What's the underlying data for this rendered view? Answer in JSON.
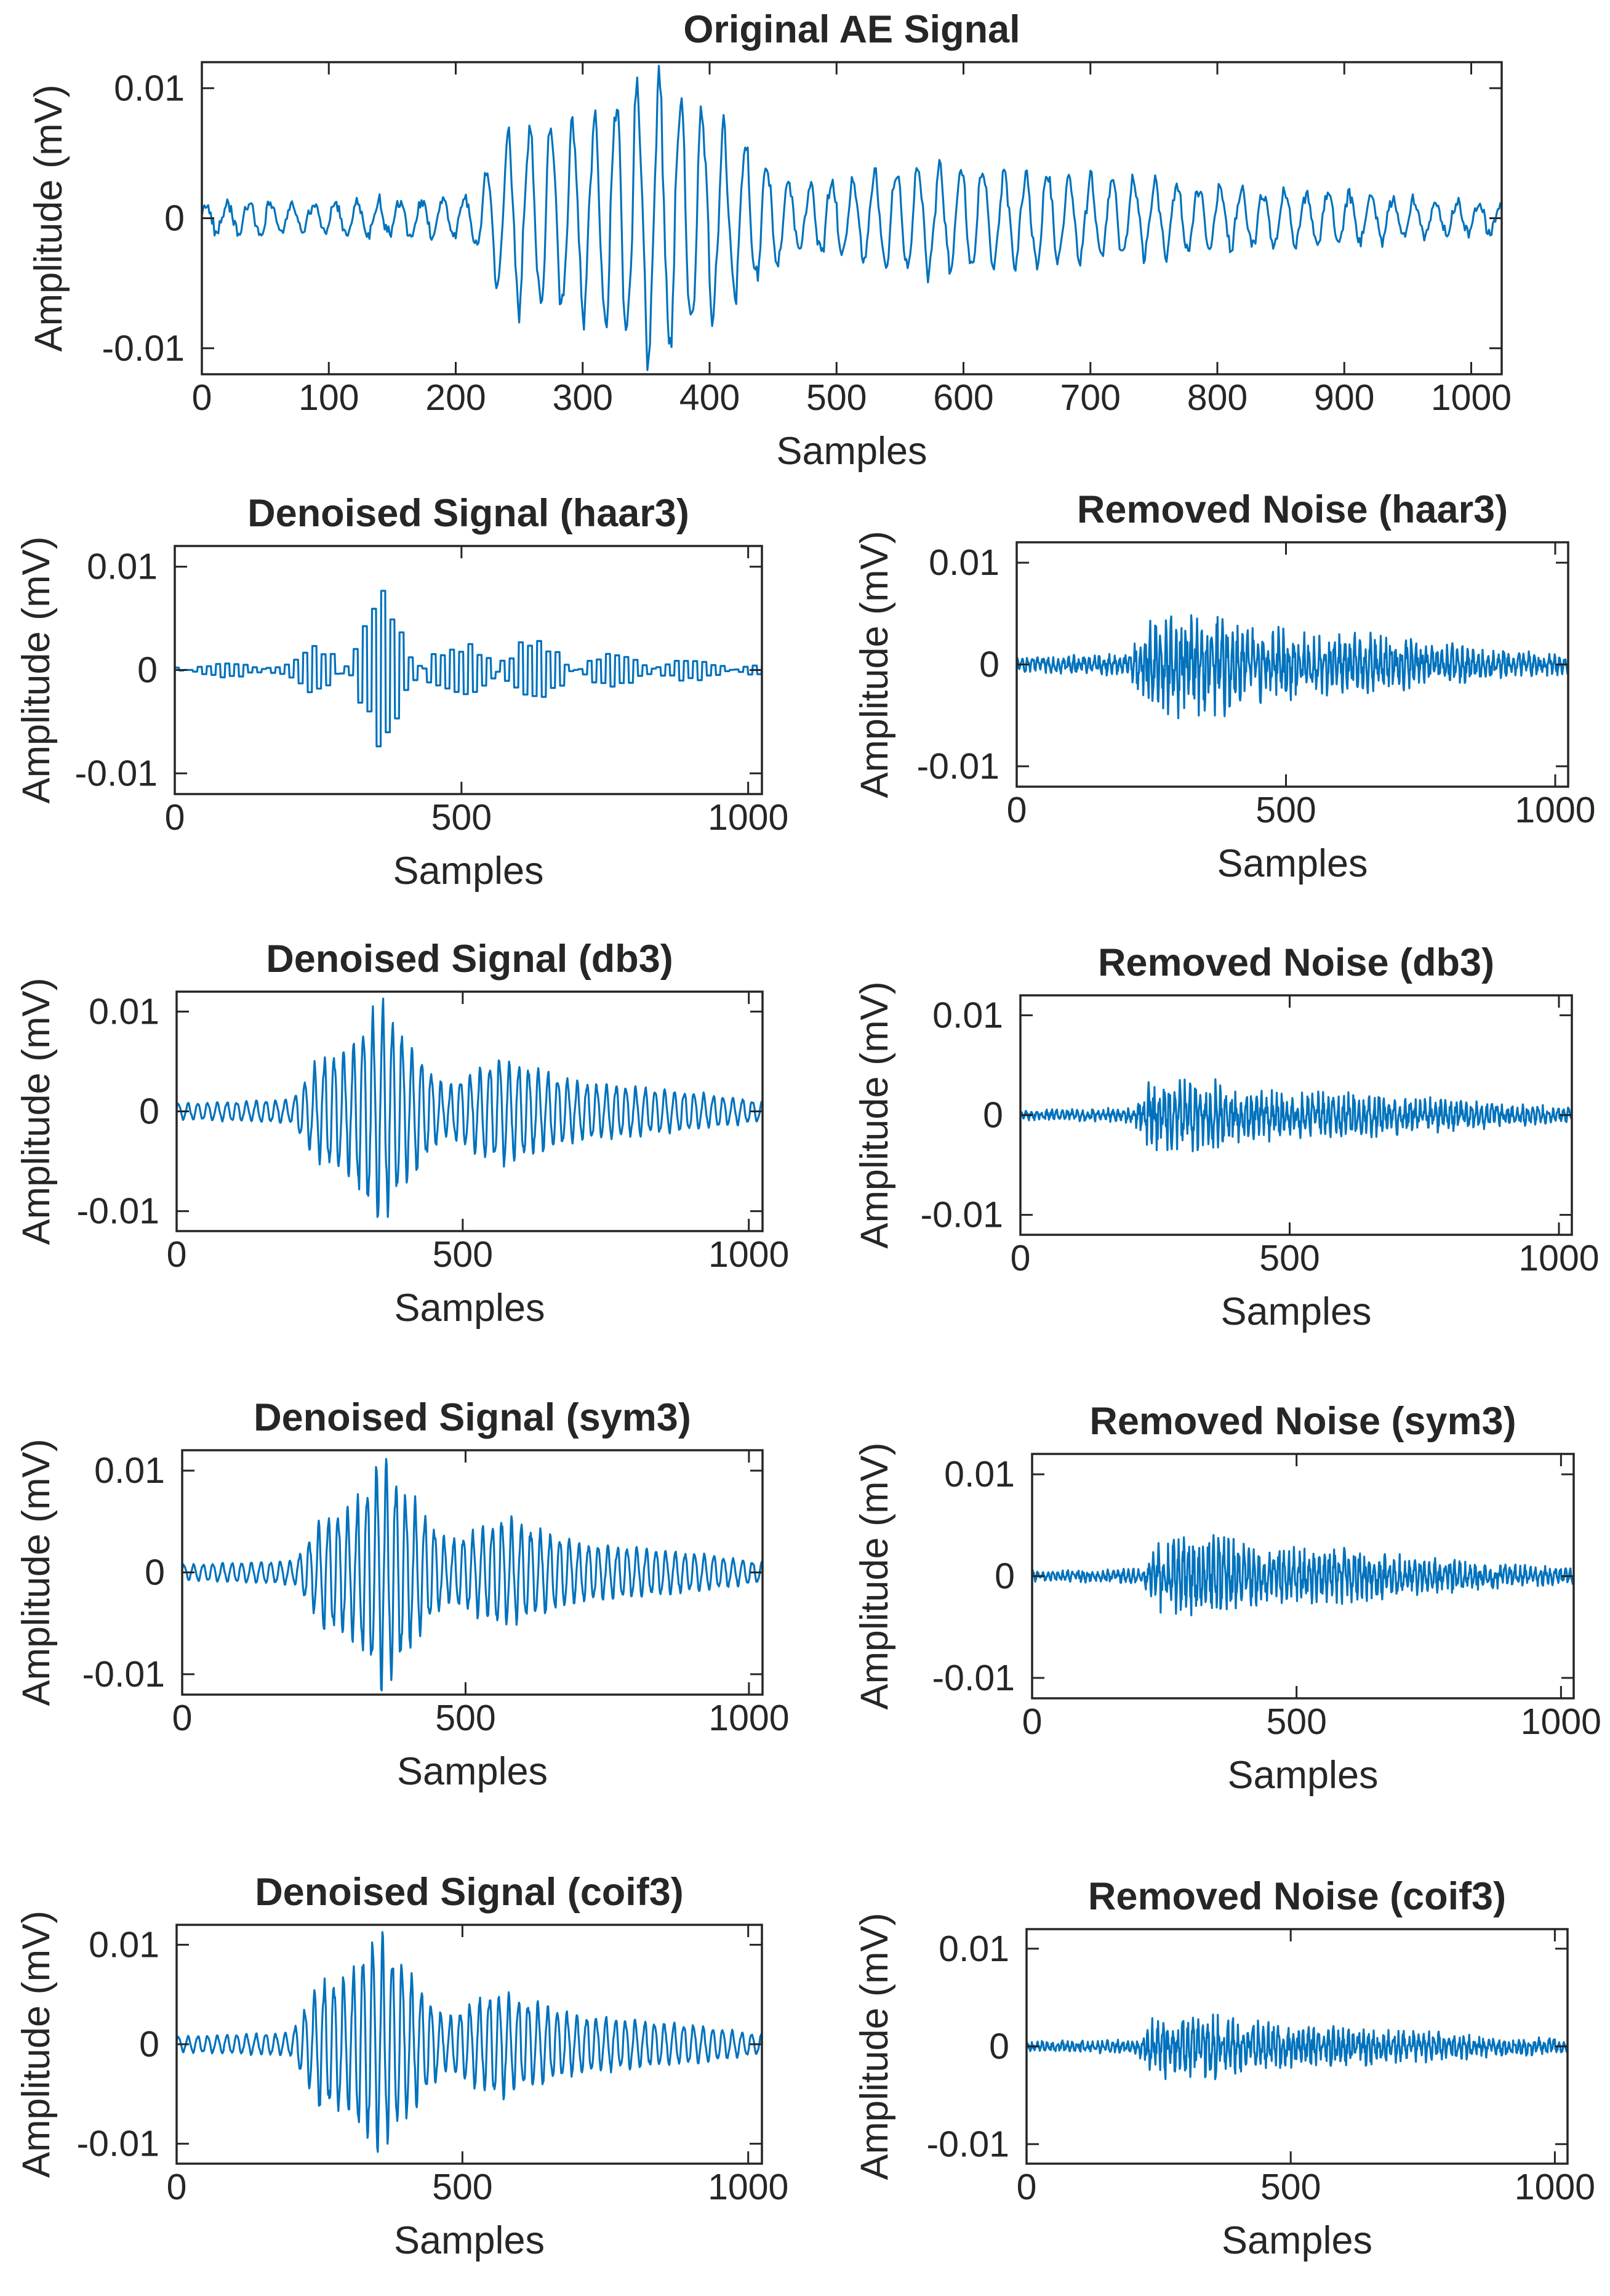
{
  "chart_data": [
    {
      "id": "orig",
      "type": "line",
      "title": "Original AE Signal",
      "xlabel": "Samples",
      "ylabel": "Amplitude (mV)",
      "xlim": [
        0,
        1024
      ],
      "ylim": [
        -0.012,
        0.012
      ],
      "xticks": [
        0,
        100,
        200,
        300,
        400,
        500,
        600,
        700,
        800,
        900,
        1000
      ],
      "xtick_labels": [
        "0",
        "100",
        "200",
        "300",
        "400",
        "500",
        "600",
        "700",
        "800",
        "900",
        "1000"
      ],
      "yticks": [
        0.01,
        0,
        -0.01
      ],
      "ytick_labels": [
        "0.01",
        "0",
        "-0.01"
      ],
      "series": [
        {
          "name": "Original AE Signal",
          "color": "#0072BD",
          "amplitude_envelope": [
            [
              0,
              0.0012
            ],
            [
              210,
              0.0015
            ],
            [
              245,
              0.0075
            ],
            [
              300,
              0.0078
            ],
            [
              355,
              0.0118
            ],
            [
              400,
              0.0085
            ],
            [
              470,
              0.0025
            ],
            [
              560,
              0.0045
            ],
            [
              700,
              0.0035
            ],
            [
              800,
              0.0025
            ],
            [
              900,
              0.002
            ],
            [
              1024,
              0.0012
            ]
          ]
        }
      ]
    },
    {
      "id": "haar_den",
      "type": "line",
      "title": "Denoised Signal (haar3)",
      "xlabel": "Samples",
      "ylabel": "Amplitude (mV)",
      "xlim": [
        0,
        1024
      ],
      "ylim": [
        -0.012,
        0.012
      ],
      "xticks": [
        0,
        500,
        1000
      ],
      "xtick_labels": [
        "0",
        "500",
        "1000"
      ],
      "yticks": [
        0.01,
        0,
        -0.01
      ],
      "ytick_labels": [
        "0.01",
        "0",
        "-0.01"
      ],
      "series": [
        {
          "name": "Denoised Signal (haar3)",
          "color": "#0072BD",
          "amplitude_envelope": [
            [
              0,
              0.0006
            ],
            [
              200,
              0.0008
            ],
            [
              250,
              0.003
            ],
            [
              300,
              0.003
            ],
            [
              355,
              0.008
            ],
            [
              400,
              0.0045
            ],
            [
              470,
              0.002
            ],
            [
              560,
              0.0035
            ],
            [
              700,
              0.002
            ],
            [
              900,
              0.001
            ],
            [
              1024,
              0.0006
            ]
          ]
        }
      ]
    },
    {
      "id": "haar_noise",
      "type": "line",
      "title": "Removed Noise (haar3)",
      "xlabel": "Samples",
      "ylabel": "Amplitude (mV)",
      "xlim": [
        0,
        1024
      ],
      "ylim": [
        -0.012,
        0.012
      ],
      "xticks": [
        0,
        500,
        1000
      ],
      "xtick_labels": [
        "0",
        "500",
        "1000"
      ],
      "yticks": [
        0.01,
        0,
        -0.01
      ],
      "ytick_labels": [
        "0.01",
        "0",
        "-0.01"
      ],
      "series": [
        {
          "name": "Removed Noise (haar3)",
          "color": "#0072BD",
          "amplitude_envelope": [
            [
              0,
              0.0008
            ],
            [
              210,
              0.0012
            ],
            [
              240,
              0.005
            ],
            [
              300,
              0.0055
            ],
            [
              360,
              0.006
            ],
            [
              420,
              0.004
            ],
            [
              560,
              0.0035
            ],
            [
              700,
              0.003
            ],
            [
              850,
              0.0018
            ],
            [
              1024,
              0.001
            ]
          ]
        }
      ]
    },
    {
      "id": "db_den",
      "type": "line",
      "title": "Denoised Signal (db3)",
      "xlabel": "Samples",
      "ylabel": "Amplitude (mV)",
      "xlim": [
        0,
        1024
      ],
      "ylim": [
        -0.012,
        0.012
      ],
      "xticks": [
        0,
        500,
        1000
      ],
      "xtick_labels": [
        "0",
        "500",
        "1000"
      ],
      "yticks": [
        0.01,
        0,
        -0.01
      ],
      "ytick_labels": [
        "0.01",
        "0",
        "-0.01"
      ],
      "series": [
        {
          "name": "Denoised Signal (db3)",
          "color": "#0072BD",
          "amplitude_envelope": [
            [
              0,
              0.0008
            ],
            [
              200,
              0.0012
            ],
            [
              250,
              0.0055
            ],
            [
              300,
              0.0065
            ],
            [
              355,
              0.0118
            ],
            [
              400,
              0.0075
            ],
            [
              470,
              0.0025
            ],
            [
              560,
              0.0055
            ],
            [
              700,
              0.003
            ],
            [
              900,
              0.002
            ],
            [
              1024,
              0.001
            ]
          ]
        }
      ]
    },
    {
      "id": "db_noise",
      "type": "line",
      "title": "Removed Noise (db3)",
      "xlabel": "Samples",
      "ylabel": "Amplitude (mV)",
      "xlim": [
        0,
        1024
      ],
      "ylim": [
        -0.012,
        0.012
      ],
      "xticks": [
        0,
        500,
        1000
      ],
      "xtick_labels": [
        "0",
        "500",
        "1000"
      ],
      "yticks": [
        0.01,
        0,
        -0.01
      ],
      "ytick_labels": [
        "0.01",
        "0",
        "-0.01"
      ],
      "series": [
        {
          "name": "Removed Noise (db3)",
          "color": "#0072BD",
          "amplitude_envelope": [
            [
              0,
              0.0006
            ],
            [
              210,
              0.0008
            ],
            [
              240,
              0.004
            ],
            [
              360,
              0.004
            ],
            [
              420,
              0.0028
            ],
            [
              560,
              0.0025
            ],
            [
              700,
              0.0022
            ],
            [
              850,
              0.0015
            ],
            [
              1024,
              0.0008
            ]
          ]
        }
      ]
    },
    {
      "id": "sym_den",
      "type": "line",
      "title": "Denoised Signal (sym3)",
      "xlabel": "Samples",
      "ylabel": "Amplitude (mV)",
      "xlim": [
        0,
        1024
      ],
      "ylim": [
        -0.012,
        0.012
      ],
      "xticks": [
        0,
        500,
        1000
      ],
      "xtick_labels": [
        "0",
        "500",
        "1000"
      ],
      "yticks": [
        0.01,
        0,
        -0.01
      ],
      "ytick_labels": [
        "0.01",
        "0",
        "-0.01"
      ],
      "series": [
        {
          "name": "Denoised Signal (sym3)",
          "color": "#0072BD",
          "amplitude_envelope": [
            [
              0,
              0.0008
            ],
            [
              200,
              0.0012
            ],
            [
              250,
              0.0058
            ],
            [
              300,
              0.0065
            ],
            [
              355,
              0.0118
            ],
            [
              400,
              0.0078
            ],
            [
              470,
              0.003
            ],
            [
              560,
              0.0055
            ],
            [
              700,
              0.003
            ],
            [
              900,
              0.002
            ],
            [
              1024,
              0.001
            ]
          ]
        }
      ]
    },
    {
      "id": "sym_noise",
      "type": "line",
      "title": "Removed Noise (sym3)",
      "xlabel": "Samples",
      "ylabel": "Amplitude (mV)",
      "xlim": [
        0,
        1024
      ],
      "ylim": [
        -0.012,
        0.012
      ],
      "xticks": [
        0,
        500,
        1000
      ],
      "xtick_labels": [
        "0",
        "500",
        "1000"
      ],
      "yticks": [
        0.01,
        0,
        -0.01
      ],
      "ytick_labels": [
        "0.01",
        "0",
        "-0.01"
      ],
      "series": [
        {
          "name": "Removed Noise (sym3)",
          "color": "#0072BD",
          "amplitude_envelope": [
            [
              0,
              0.0006
            ],
            [
              210,
              0.0008
            ],
            [
              240,
              0.004
            ],
            [
              360,
              0.0045
            ],
            [
              420,
              0.003
            ],
            [
              560,
              0.003
            ],
            [
              700,
              0.0022
            ],
            [
              850,
              0.0015
            ],
            [
              1024,
              0.0008
            ]
          ]
        }
      ]
    },
    {
      "id": "coif_den",
      "type": "line",
      "title": "Denoised Signal (coif3)",
      "xlabel": "Samples",
      "ylabel": "Amplitude (mV)",
      "xlim": [
        0,
        1024
      ],
      "ylim": [
        -0.012,
        0.012
      ],
      "xticks": [
        0,
        500,
        1000
      ],
      "xtick_labels": [
        "0",
        "500",
        "1000"
      ],
      "yticks": [
        0.01,
        0,
        -0.01
      ],
      "ytick_labels": [
        "0.01",
        "0",
        "-0.01"
      ],
      "series": [
        {
          "name": "Denoised Signal (coif3)",
          "color": "#0072BD",
          "amplitude_envelope": [
            [
              0,
              0.0008
            ],
            [
              200,
              0.0012
            ],
            [
              250,
              0.0065
            ],
            [
              300,
              0.007
            ],
            [
              350,
              0.0115
            ],
            [
              400,
              0.0078
            ],
            [
              470,
              0.0028
            ],
            [
              560,
              0.0055
            ],
            [
              700,
              0.003
            ],
            [
              900,
              0.002
            ],
            [
              1024,
              0.001
            ]
          ]
        }
      ]
    },
    {
      "id": "coif_noise",
      "type": "line",
      "title": "Removed Noise (coif3)",
      "xlabel": "Samples",
      "ylabel": "Amplitude (mV)",
      "xlim": [
        0,
        1024
      ],
      "ylim": [
        -0.012,
        0.012
      ],
      "xticks": [
        0,
        500,
        1000
      ],
      "xtick_labels": [
        "0",
        "500",
        "1000"
      ],
      "yticks": [
        0.01,
        0,
        -0.01
      ],
      "ytick_labels": [
        "0.01",
        "0",
        "-0.01"
      ],
      "series": [
        {
          "name": "Removed Noise (coif3)",
          "color": "#0072BD",
          "amplitude_envelope": [
            [
              0,
              0.0006
            ],
            [
              210,
              0.0008
            ],
            [
              240,
              0.0035
            ],
            [
              360,
              0.0035
            ],
            [
              420,
              0.0028
            ],
            [
              560,
              0.0022
            ],
            [
              700,
              0.002
            ],
            [
              850,
              0.0013
            ],
            [
              1024,
              0.0008
            ]
          ]
        }
      ]
    }
  ]
}
